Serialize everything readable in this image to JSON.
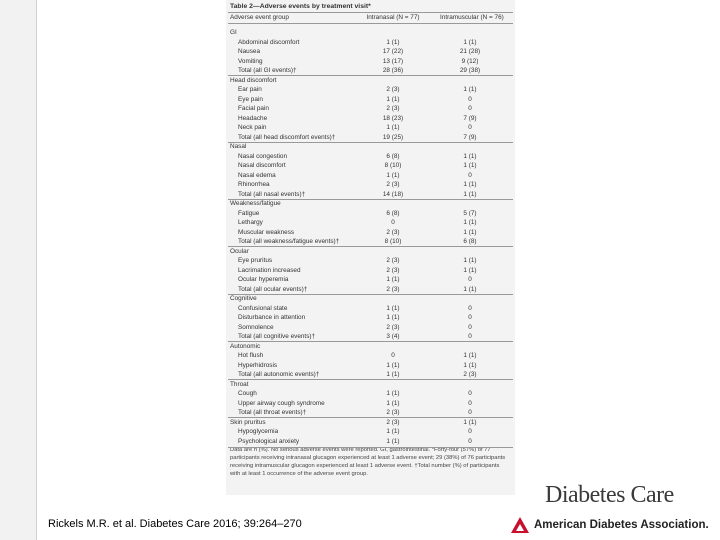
{
  "table": {
    "title": "Table 2—Adverse events by treatment visit*",
    "header": [
      "Adverse event group",
      "Intranasal (N = 77)",
      "Intramuscular (N = 76)"
    ],
    "rows": [
      [
        "GI"
      ],
      [
        "Abdominal discomfort",
        "1 (1)",
        "1 (1)"
      ],
      [
        "Nausea",
        "17 (22)",
        "21 (28)"
      ],
      [
        "Vomiting",
        "13 (17)",
        "9 (12)"
      ],
      [
        "Total (all GI events)†",
        "28 (36)",
        "29 (38)"
      ],
      [
        "Head discomfort"
      ],
      [
        "Ear pain",
        "2 (3)",
        "1 (1)"
      ],
      [
        "Eye pain",
        "1 (1)",
        "0"
      ],
      [
        "Facial pain",
        "2 (3)",
        "0"
      ],
      [
        "Headache",
        "18 (23)",
        "7 (9)"
      ],
      [
        "Neck pain",
        "1 (1)",
        "0"
      ],
      [
        "Total (all head discomfort events)†",
        "19 (25)",
        "7 (9)"
      ],
      [
        "Nasal"
      ],
      [
        "Nasal congestion",
        "6 (8)",
        "1 (1)"
      ],
      [
        "Nasal discomfort",
        "8 (10)",
        "1 (1)"
      ],
      [
        "Nasal edema",
        "1 (1)",
        "0"
      ],
      [
        "Rhinorrhea",
        "2 (3)",
        "1 (1)"
      ],
      [
        "Total (all nasal events)†",
        "14 (18)",
        "1 (1)"
      ],
      [
        "Weakness/fatigue"
      ],
      [
        "Fatigue",
        "6 (8)",
        "5 (7)"
      ],
      [
        "Lethargy",
        "0",
        "1 (1)"
      ],
      [
        "Muscular weakness",
        "2 (3)",
        "1 (1)"
      ],
      [
        "Total (all weakness/fatigue events)†",
        "8 (10)",
        "6 (8)"
      ],
      [
        "Ocular"
      ],
      [
        "Eye pruritus",
        "2 (3)",
        "1 (1)"
      ],
      [
        "Lacrimation increased",
        "2 (3)",
        "1 (1)"
      ],
      [
        "Ocular hyperemia",
        "1 (1)",
        "0"
      ],
      [
        "Total (all ocular events)†",
        "2 (3)",
        "1 (1)"
      ],
      [
        "Cognitive"
      ],
      [
        "Confusional state",
        "1 (1)",
        "0"
      ],
      [
        "Disturbance in attention",
        "1 (1)",
        "0"
      ],
      [
        "Somnolence",
        "2 (3)",
        "0"
      ],
      [
        "Total (all cognitive events)†",
        "3 (4)",
        "0"
      ],
      [
        "Autonomic"
      ],
      [
        "Hot flush",
        "0",
        "1 (1)"
      ],
      [
        "Hyperhidrosis",
        "1 (1)",
        "1 (1)"
      ],
      [
        "Total (all autonomic events)†",
        "1 (1)",
        "2 (3)"
      ],
      [
        "Throat"
      ],
      [
        "Cough",
        "1 (1)",
        "0"
      ],
      [
        "Upper airway cough syndrome",
        "1 (1)",
        "0"
      ],
      [
        "Total (all throat events)†",
        "2 (3)",
        "0"
      ],
      [
        "Skin pruritus",
        "2 (3)",
        "1 (1)"
      ],
      [
        "Hypoglycemia",
        "1 (1)",
        "0"
      ],
      [
        "Psychological anxiety",
        "1 (1)",
        "0"
      ]
    ],
    "footnote": "Data are n (%). No serious adverse events were reported. GI, gastrointestinal. *Forty-four (57%) of 77 participants receiving intranasal glucagon experienced at least 1 adverse event; 29 (38%) of 76 participants receiving intramuscular glucagon experienced at least 1 adverse event. †Total number (%) of participants with at least 1 occurrence of the adverse event group."
  },
  "citation": "Rickels M.R. et al. Diabetes Care 2016; 39:264–270",
  "logo": {
    "journal": "Diabetes Care",
    "association": "American Diabetes Association."
  }
}
